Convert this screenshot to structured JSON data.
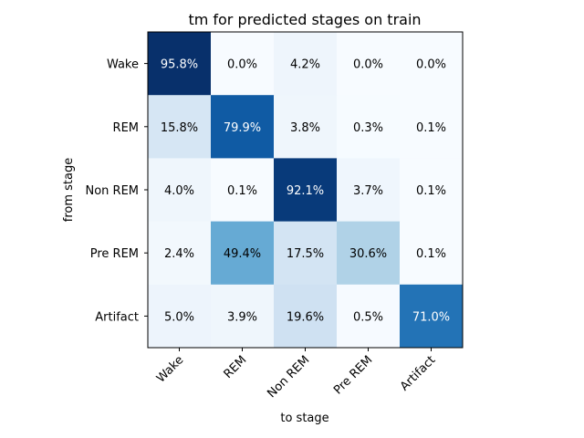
{
  "chart_data": {
    "type": "heatmap",
    "title": "tm for predicted stages on train",
    "xlabel": "to stage",
    "ylabel": "from stage",
    "x_categories": [
      "Wake",
      "REM",
      "Non REM",
      "Pre REM",
      "Artifact"
    ],
    "y_categories": [
      "Wake",
      "REM",
      "Non REM",
      "Pre REM",
      "Artifact"
    ],
    "values": [
      [
        95.8,
        0.0,
        4.2,
        0.0,
        0.0
      ],
      [
        15.8,
        79.9,
        3.8,
        0.3,
        0.1
      ],
      [
        4.0,
        0.1,
        92.1,
        3.7,
        0.1
      ],
      [
        2.4,
        49.4,
        17.5,
        30.6,
        0.1
      ],
      [
        5.0,
        3.9,
        19.6,
        0.5,
        71.0
      ]
    ],
    "labels": [
      [
        "95.8%",
        "0.0%",
        "4.2%",
        "0.0%",
        "0.0%"
      ],
      [
        "15.8%",
        "79.9%",
        "3.8%",
        "0.3%",
        "0.1%"
      ],
      [
        "4.0%",
        "0.1%",
        "92.1%",
        "3.7%",
        "0.1%"
      ],
      [
        "2.4%",
        "49.4%",
        "17.5%",
        "30.6%",
        "0.1%"
      ],
      [
        "5.0%",
        "3.9%",
        "19.6%",
        "0.5%",
        "71.0%"
      ]
    ],
    "colormap": "Blues",
    "vmin": 0,
    "vmax": 95.8,
    "colorbar": false,
    "grid": false
  }
}
